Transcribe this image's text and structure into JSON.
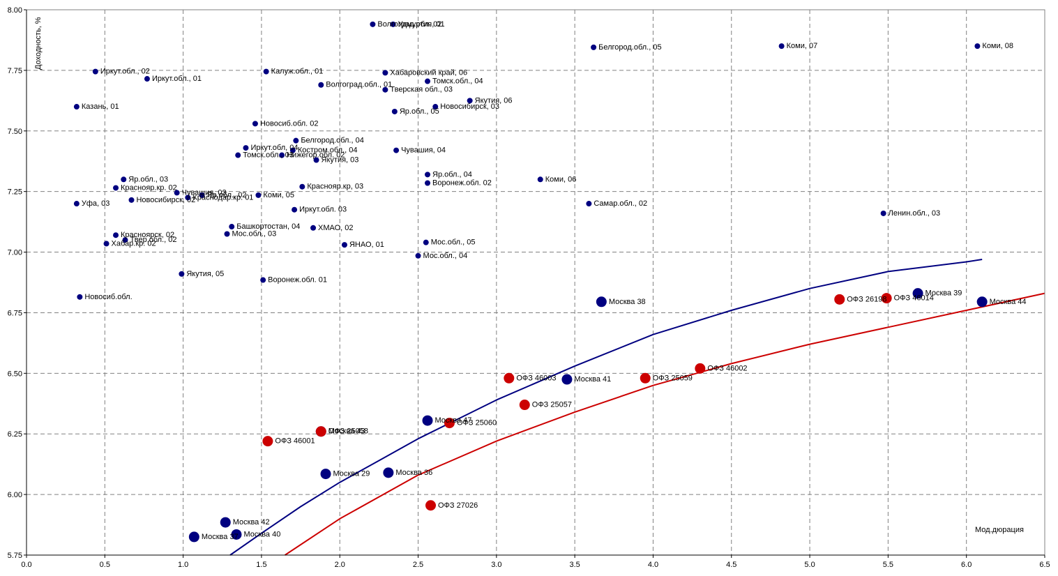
{
  "chart_data": {
    "type": "scatter",
    "xlim": [
      0,
      6.5
    ],
    "ylim": [
      5.75,
      8.0
    ],
    "xticks": [
      "0.0",
      "0.5",
      "1.0",
      "1.5",
      "2.0",
      "2.5",
      "3.0",
      "3.5",
      "4.0",
      "4.5",
      "5.0",
      "5.5",
      "6.0",
      "6.5"
    ],
    "yticks": [
      "5.75",
      "6.00",
      "6.25",
      "6.50",
      "6.75",
      "7.00",
      "7.25",
      "7.50",
      "7.75",
      "8.00"
    ],
    "xlabel": "Мод.дюрация",
    "ylabel": "Доходность, %",
    "grid": true,
    "colors": {
      "regional": "#000080",
      "ofz": "#cc0000",
      "moscow": "#000080"
    },
    "series": [
      {
        "points": [
          {
            "label": "Казань, 01",
            "x": 0.32,
            "y": 7.6
          },
          {
            "label": "Иркут.обл., 02",
            "x": 0.44,
            "y": 7.745
          },
          {
            "label": "Иркут.обл., 01",
            "x": 0.77,
            "y": 7.715
          },
          {
            "label": "Калуж.обл., 01",
            "x": 1.53,
            "y": 7.745
          },
          {
            "label": "Волгоград.обл., 01",
            "x": 1.88,
            "y": 7.69
          },
          {
            "label": "Волгоград.обл. 02",
            "x": 2.21,
            "y": 7.94
          },
          {
            "label": "Удмуртия, 01",
            "x": 2.34,
            "y": 7.94
          },
          {
            "label": "Хабаровский край, 06",
            "x": 2.29,
            "y": 7.74
          },
          {
            "label": "Томск.обл., 04",
            "x": 2.56,
            "y": 7.705
          },
          {
            "label": "Тверская обл., 03",
            "x": 2.29,
            "y": 7.67
          },
          {
            "label": "Якутия, 06",
            "x": 2.83,
            "y": 7.625
          },
          {
            "label": "Яр.обл., 05",
            "x": 2.35,
            "y": 7.58
          },
          {
            "label": "Новосибирск, 03",
            "x": 2.61,
            "y": 7.6
          },
          {
            "label": "Белгород.обл., 05",
            "x": 3.62,
            "y": 7.845
          },
          {
            "label": "Коми, 07",
            "x": 4.82,
            "y": 7.85
          },
          {
            "label": "Коми, 08",
            "x": 6.07,
            "y": 7.85
          },
          {
            "label": "Новосиб.обл. 02",
            "x": 1.46,
            "y": 7.53
          },
          {
            "label": "Иркут.обл, 04",
            "x": 1.4,
            "y": 7.43
          },
          {
            "label": "Белгород.обл., 04",
            "x": 1.72,
            "y": 7.46
          },
          {
            "label": "Костром.обл., 04",
            "x": 1.7,
            "y": 7.42
          },
          {
            "label": "Томск.обл., 03",
            "x": 1.35,
            "y": 7.4
          },
          {
            "label": "Нижегор.обл. 02",
            "x": 1.63,
            "y": 7.4
          },
          {
            "label": "Якутия, 03",
            "x": 1.85,
            "y": 7.38
          },
          {
            "label": "Чувашия, 04",
            "x": 2.36,
            "y": 7.42
          },
          {
            "label": "Яр.обл., 03",
            "x": 0.62,
            "y": 7.3
          },
          {
            "label": "Краснояр.кр. 02",
            "x": 0.57,
            "y": 7.265
          },
          {
            "label": "Уфа, 03",
            "x": 0.32,
            "y": 7.2
          },
          {
            "label": "Новосибирск, 02",
            "x": 0.67,
            "y": 7.215
          },
          {
            "label": "Чувашия, 03",
            "x": 0.96,
            "y": 7.245
          },
          {
            "label": "Краснодар.кр. 01",
            "x": 1.03,
            "y": 7.225
          },
          {
            "label": "Яр.обл., 02",
            "x": 1.12,
            "y": 7.235
          },
          {
            "label": "Коми, 05",
            "x": 1.48,
            "y": 7.235
          },
          {
            "label": "Краснояр.кр, 03",
            "x": 1.76,
            "y": 7.27
          },
          {
            "label": "Яр.обл., 04",
            "x": 2.56,
            "y": 7.32
          },
          {
            "label": "Воронеж.обл. 02",
            "x": 2.56,
            "y": 7.285
          },
          {
            "label": "Коми, 06",
            "x": 3.28,
            "y": 7.3
          },
          {
            "label": "Самар.обл., 02",
            "x": 3.59,
            "y": 7.2
          },
          {
            "label": "Ленин.обл., 03",
            "x": 5.47,
            "y": 7.16
          },
          {
            "label": "Иркут.обл. 03",
            "x": 1.71,
            "y": 7.175
          },
          {
            "label": "Красноярск, 02",
            "x": 0.57,
            "y": 7.07
          },
          {
            "label": "Твер.обл., 02",
            "x": 0.63,
            "y": 7.05
          },
          {
            "label": "Хабар.кр. 02",
            "x": 0.51,
            "y": 7.035
          },
          {
            "label": "Мос.обл., 03",
            "x": 1.28,
            "y": 7.075
          },
          {
            "label": "Башкортостан, 04",
            "x": 1.31,
            "y": 7.105
          },
          {
            "label": "ХМАО, 02",
            "x": 1.83,
            "y": 7.1
          },
          {
            "label": "ЯНАО, 01",
            "x": 2.03,
            "y": 7.03
          },
          {
            "label": "Мос.обл., 05",
            "x": 2.55,
            "y": 7.04
          },
          {
            "label": "Мос.обл., 04",
            "x": 2.5,
            "y": 6.985
          },
          {
            "label": "Якутия, 05",
            "x": 0.99,
            "y": 6.91
          },
          {
            "label": "Воронеж.обл. 01",
            "x": 1.51,
            "y": 6.885
          },
          {
            "label": "Новосиб.обл.",
            "x": 0.34,
            "y": 6.815
          }
        ]
      },
      {
        "points": [
          {
            "label": "Москва 38",
            "x": 3.67,
            "y": 6.795
          },
          {
            "label": "Москва 39",
            "x": 5.69,
            "y": 6.83
          },
          {
            "label": "Москва 44",
            "x": 6.1,
            "y": 6.795
          },
          {
            "label": "Москва 41",
            "x": 3.45,
            "y": 6.475
          },
          {
            "label": "Москва 47",
            "x": 2.56,
            "y": 6.305
          },
          {
            "label": "Москва 43",
            "x": 1.88,
            "y": 6.26
          },
          {
            "label": "Москва 29",
            "x": 1.91,
            "y": 6.085
          },
          {
            "label": "Москва 36",
            "x": 2.31,
            "y": 6.09
          },
          {
            "label": "Москва 42",
            "x": 1.27,
            "y": 5.885
          },
          {
            "label": "Москва 40",
            "x": 1.34,
            "y": 5.835
          },
          {
            "label": "Москва 37",
            "x": 1.07,
            "y": 5.825
          }
        ]
      },
      {
        "points": [
          {
            "label": "ОФЗ 26198",
            "x": 5.19,
            "y": 6.805
          },
          {
            "label": "ОФЗ 46014",
            "x": 5.49,
            "y": 6.81
          },
          {
            "label": "ОФЗ 46003",
            "x": 3.08,
            "y": 6.48
          },
          {
            "label": "ОФЗ 25059",
            "x": 3.95,
            "y": 6.48
          },
          {
            "label": "ОФЗ 46002",
            "x": 4.3,
            "y": 6.52
          },
          {
            "label": "ОФЗ 25057",
            "x": 3.18,
            "y": 6.37
          },
          {
            "label": "ОФЗ 25060",
            "x": 2.7,
            "y": 6.295
          },
          {
            "label": "ОФЗ 25058",
            "x": 1.88,
            "y": 6.26
          },
          {
            "label": "ОФЗ 46001",
            "x": 1.54,
            "y": 6.22
          },
          {
            "label": "ОФЗ 27026",
            "x": 2.58,
            "y": 5.955
          }
        ]
      }
    ],
    "trendlines": [
      {
        "color": "#000080",
        "x": [
          1.3,
          1.5,
          1.75,
          2.0,
          2.25,
          2.5,
          2.75,
          3.0,
          3.5,
          4.0,
          4.5,
          5.0,
          5.5,
          6.0,
          6.1
        ],
        "y": [
          5.75,
          5.84,
          5.95,
          6.05,
          6.14,
          6.23,
          6.31,
          6.39,
          6.53,
          6.66,
          6.76,
          6.85,
          6.92,
          6.96,
          6.97
        ]
      },
      {
        "color": "#cc0000",
        "x": [
          1.65,
          2.0,
          2.5,
          3.0,
          3.5,
          4.0,
          4.5,
          5.0,
          5.5,
          6.0,
          6.5
        ],
        "y": [
          5.75,
          5.9,
          6.08,
          6.22,
          6.34,
          6.45,
          6.54,
          6.62,
          6.69,
          6.76,
          6.83
        ]
      }
    ]
  }
}
